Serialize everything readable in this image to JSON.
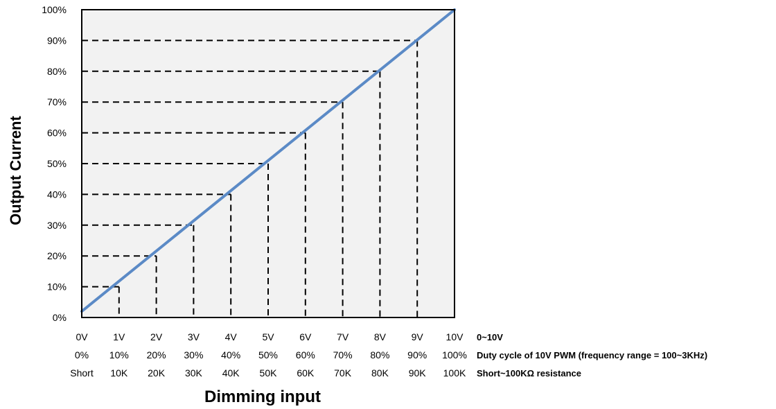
{
  "chart_data": {
    "type": "line",
    "ylabel": "Output Current",
    "xlabel": "Dimming input",
    "ylim": [
      0,
      100
    ],
    "xlim": [
      0,
      10
    ],
    "y_ticks": [
      "0%",
      "10%",
      "20%",
      "30%",
      "40%",
      "50%",
      "60%",
      "70%",
      "80%",
      "90%",
      "100%"
    ],
    "x_rows": [
      {
        "labels": [
          "0V",
          "1V",
          "2V",
          "3V",
          "4V",
          "5V",
          "6V",
          "7V",
          "8V",
          "9V",
          "10V"
        ],
        "note": "0~10V"
      },
      {
        "labels": [
          "0%",
          "10%",
          "20%",
          "30%",
          "40%",
          "50%",
          "60%",
          "70%",
          "80%",
          "90%",
          "100%"
        ],
        "note": "Duty cycle of 10V PWM (frequency range = 100~3KHz)"
      },
      {
        "labels": [
          "Short",
          "10K",
          "20K",
          "30K",
          "40K",
          "50K",
          "60K",
          "70K",
          "80K",
          "90K",
          "100K"
        ],
        "note": "Short~100KΩ  resistance"
      }
    ],
    "series": [
      {
        "x": [
          0,
          10
        ],
        "y": [
          2,
          100
        ]
      }
    ],
    "guides": [
      {
        "x": 1,
        "y": 10
      },
      {
        "x": 2,
        "y": 20
      },
      {
        "x": 3,
        "y": 30
      },
      {
        "x": 4,
        "y": 40
      },
      {
        "x": 5,
        "y": 50
      },
      {
        "x": 6,
        "y": 60
      },
      {
        "x": 7,
        "y": 70
      },
      {
        "x": 8,
        "y": 80
      },
      {
        "x": 9,
        "y": 90
      }
    ],
    "grid": false,
    "colors": {
      "line": "#5b8ac6",
      "plot_bg": "#f2f2f2",
      "guide": "#000000"
    }
  }
}
